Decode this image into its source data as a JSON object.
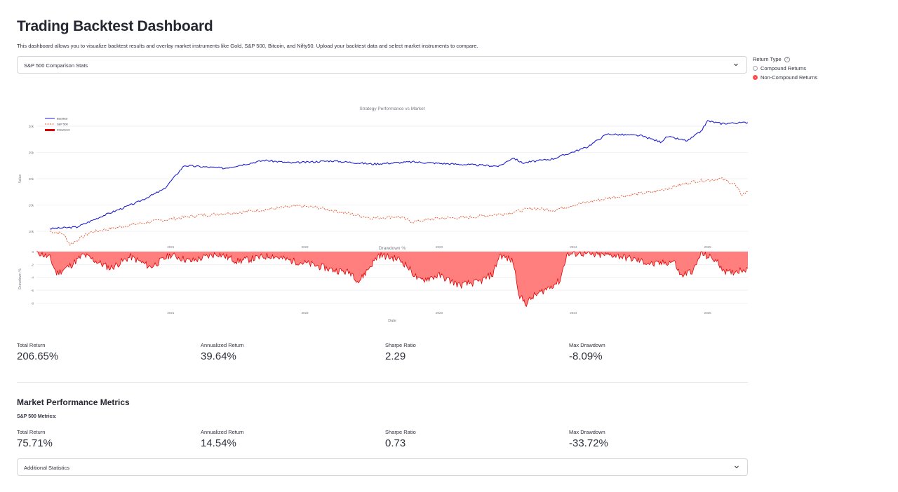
{
  "header": {
    "title": "Trading Backtest Dashboard",
    "subtitle": "This dashboard allows you to visualize backtest results and overlay market instruments like Gold, S&P 500, Bitcoin, and Nifty50. Upload your backtest data and select market instruments to compare."
  },
  "comparison_select": {
    "value": "S&P 500 Comparison Stats",
    "icon": "chevron-down-icon"
  },
  "return_type": {
    "label": "Return Type",
    "help_icon": "?",
    "options": [
      {
        "label": "Compound Returns",
        "selected": false
      },
      {
        "label": "Non-Compound Returns",
        "selected": true
      }
    ]
  },
  "colors": {
    "backtest": "#1f1fd1",
    "sp500": "#e8532e",
    "drawdown_fill": "#ff7f7f",
    "drawdown_line": "#e00000",
    "accent": "#ff4b4b"
  },
  "chart_data": [
    {
      "type": "line",
      "title": "Strategy Performance vs Market",
      "ylabel": "Value",
      "xlabel": "",
      "x_ticks": [
        "2021",
        "2022",
        "2023",
        "2024",
        "2025"
      ],
      "y_ticks": [
        "10k",
        "15k",
        "20k",
        "25k",
        "30k"
      ],
      "ylim": [
        8000,
        32000
      ],
      "legend_position": "top-left",
      "grid": true,
      "series": [
        {
          "name": "Backtest",
          "style": "solid",
          "points": [
            [
              2020.1,
              10500
            ],
            [
              2020.3,
              10800
            ],
            [
              2020.5,
              13000
            ],
            [
              2020.75,
              15500
            ],
            [
              2020.95,
              18000
            ],
            [
              2021.1,
              22500
            ],
            [
              2021.4,
              22000
            ],
            [
              2021.7,
              23500
            ],
            [
              2021.9,
              23000
            ],
            [
              2022.2,
              23400
            ],
            [
              2022.5,
              22800
            ],
            [
              2022.8,
              23200
            ],
            [
              2023.1,
              22800
            ],
            [
              2023.45,
              22400
            ],
            [
              2023.55,
              24000
            ],
            [
              2023.62,
              23000
            ],
            [
              2023.85,
              23800
            ],
            [
              2024.1,
              26000
            ],
            [
              2024.25,
              28500
            ],
            [
              2024.5,
              28200
            ],
            [
              2024.65,
              27000
            ],
            [
              2024.7,
              28000
            ],
            [
              2024.85,
              27200
            ],
            [
              2024.95,
              29000
            ],
            [
              2025.0,
              31000
            ],
            [
              2025.1,
              30500
            ],
            [
              2025.3,
              30700
            ]
          ]
        },
        {
          "name": "S&P 500",
          "style": "dashed",
          "points": [
            [
              2020.1,
              10000
            ],
            [
              2020.2,
              9500
            ],
            [
              2020.25,
              7500
            ],
            [
              2020.4,
              9800
            ],
            [
              2020.7,
              11200
            ],
            [
              2020.9,
              12000
            ],
            [
              2021.2,
              13000
            ],
            [
              2021.5,
              13600
            ],
            [
              2021.8,
              14400
            ],
            [
              2021.95,
              14800
            ],
            [
              2022.1,
              14500
            ],
            [
              2022.3,
              13500
            ],
            [
              2022.5,
              12500
            ],
            [
              2022.7,
              12800
            ],
            [
              2022.8,
              11800
            ],
            [
              2023.0,
              12500
            ],
            [
              2023.2,
              12600
            ],
            [
              2023.5,
              13400
            ],
            [
              2023.7,
              14400
            ],
            [
              2023.85,
              14000
            ],
            [
              2024.0,
              15000
            ],
            [
              2024.3,
              16500
            ],
            [
              2024.6,
              17500
            ],
            [
              2024.9,
              19500
            ],
            [
              2025.1,
              20000
            ],
            [
              2025.2,
              19000
            ],
            [
              2025.25,
              17000
            ],
            [
              2025.3,
              17500
            ]
          ]
        },
        {
          "name": "Drawdown",
          "style": "area"
        }
      ]
    },
    {
      "type": "area",
      "title": "Drawdown %",
      "ylabel": "Drawdown %",
      "xlabel": "Date",
      "x_ticks": [
        "2021",
        "2022",
        "2023",
        "2024",
        "2025"
      ],
      "y_ticks": [
        "0",
        "-2",
        "-4",
        "-6",
        "-8"
      ],
      "ylim": [
        -8.5,
        0
      ],
      "grid": true,
      "min_drawdown": -8.09,
      "points": [
        [
          2020.0,
          0
        ],
        [
          2020.1,
          -1
        ],
        [
          2020.15,
          -3.4
        ],
        [
          2020.25,
          -2.2
        ],
        [
          2020.35,
          -0.5
        ],
        [
          2020.55,
          -2.6
        ],
        [
          2020.7,
          -0.8
        ],
        [
          2020.85,
          -2.4
        ],
        [
          2021.0,
          -0.5
        ],
        [
          2021.15,
          -1.5
        ],
        [
          2021.35,
          -0.3
        ],
        [
          2021.5,
          -1.5
        ],
        [
          2021.75,
          -0.6
        ],
        [
          2021.85,
          -1.2
        ],
        [
          2022.05,
          -2.0
        ],
        [
          2022.2,
          -2.8
        ],
        [
          2022.35,
          -3.3
        ],
        [
          2022.4,
          -4.7
        ],
        [
          2022.55,
          -0.5
        ],
        [
          2022.7,
          -1.2
        ],
        [
          2022.75,
          -2.0
        ],
        [
          2022.85,
          -4.5
        ],
        [
          2023.0,
          -3.7
        ],
        [
          2023.15,
          -5.2
        ],
        [
          2023.3,
          -4.7
        ],
        [
          2023.4,
          -3.5
        ],
        [
          2023.45,
          -0.5
        ],
        [
          2023.55,
          -1.5
        ],
        [
          2023.6,
          -7.0
        ],
        [
          2023.65,
          -8.09
        ],
        [
          2023.7,
          -7.0
        ],
        [
          2023.8,
          -5.8
        ],
        [
          2023.9,
          -4.5
        ],
        [
          2023.95,
          -0.5
        ],
        [
          2024.05,
          -0.2
        ],
        [
          2024.15,
          -0.6
        ],
        [
          2024.3,
          -0.5
        ],
        [
          2024.45,
          -1.2
        ],
        [
          2024.6,
          -2.0
        ],
        [
          2024.75,
          -1.5
        ],
        [
          2024.8,
          -3.8
        ],
        [
          2024.9,
          -2.8
        ],
        [
          2024.95,
          -0.3
        ],
        [
          2025.05,
          -1.2
        ],
        [
          2025.15,
          -3.4
        ],
        [
          2025.25,
          -2.8
        ],
        [
          2025.3,
          -2.6
        ]
      ]
    }
  ],
  "backtest_metrics": [
    {
      "label": "Total Return",
      "value": "206.65%"
    },
    {
      "label": "Annualized Return",
      "value": "39.64%"
    },
    {
      "label": "Sharpe Ratio",
      "value": "2.29"
    },
    {
      "label": "Max Drawdown",
      "value": "-8.09%"
    }
  ],
  "market_section": {
    "title": "Market Performance Metrics",
    "subtitle": "S&P 500 Metrics:",
    "metrics": [
      {
        "label": "Total Return",
        "value": "75.71%"
      },
      {
        "label": "Annualized Return",
        "value": "14.54%"
      },
      {
        "label": "Sharpe Ratio",
        "value": "0.73"
      },
      {
        "label": "Max Drawdown",
        "value": "-33.72%"
      }
    ]
  },
  "additional_stats": {
    "label": "Additional Statistics",
    "icon": "chevron-down-icon"
  }
}
